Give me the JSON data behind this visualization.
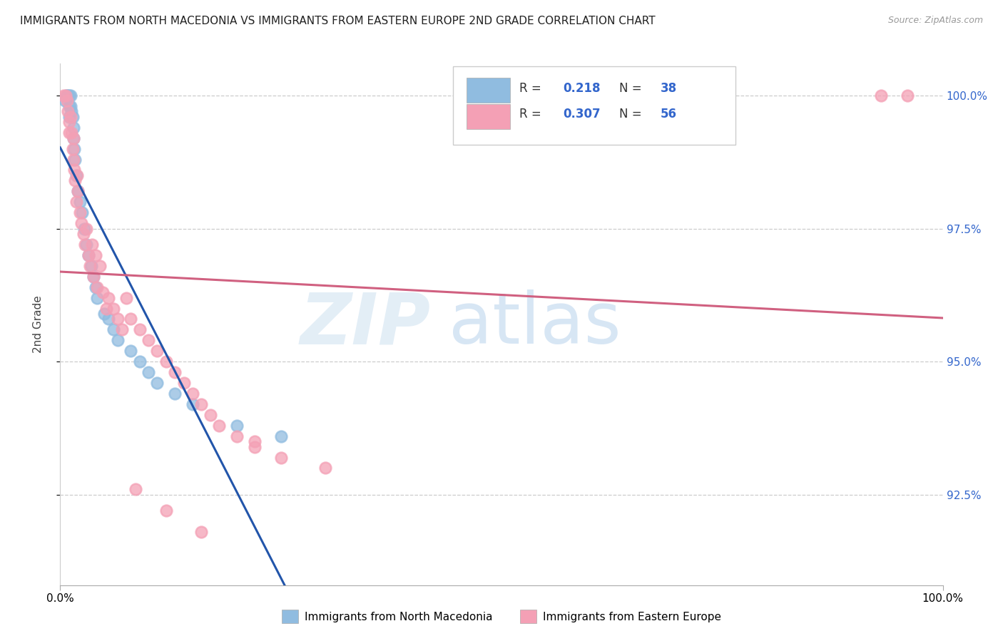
{
  "title": "IMMIGRANTS FROM NORTH MACEDONIA VS IMMIGRANTS FROM EASTERN EUROPE 2ND GRADE CORRELATION CHART",
  "source": "Source: ZipAtlas.com",
  "ylabel": "2nd Grade",
  "y_tick_values": [
    0.925,
    0.95,
    0.975,
    1.0
  ],
  "y_tick_labels": [
    "92.5%",
    "95.0%",
    "97.5%",
    "100.0%"
  ],
  "x_lim": [
    0.0,
    1.0
  ],
  "y_lim": [
    0.908,
    1.006
  ],
  "blue_color": "#90BCE0",
  "pink_color": "#F4A0B5",
  "blue_line_color": "#2255AA",
  "pink_line_color": "#D06080",
  "legend_label1": "Immigrants from North Macedonia",
  "legend_label2": "Immigrants from Eastern Europe",
  "r_blue": "0.218",
  "n_blue": "38",
  "r_pink": "0.307",
  "n_pink": "56",
  "blue_x": [
    0.005,
    0.007,
    0.008,
    0.009,
    0.01,
    0.01,
    0.01,
    0.012,
    0.012,
    0.013,
    0.014,
    0.015,
    0.015,
    0.016,
    0.017,
    0.018,
    0.02,
    0.022,
    0.025,
    0.027,
    0.03,
    0.032,
    0.035,
    0.038,
    0.04,
    0.042,
    0.05,
    0.055,
    0.06,
    0.065,
    0.08,
    0.09,
    0.1,
    0.11,
    0.13,
    0.15,
    0.2,
    0.25
  ],
  "blue_y": [
    0.999,
    1.0,
    1.0,
    1.0,
    1.0,
    0.998,
    0.996,
    1.0,
    0.998,
    0.997,
    0.996,
    0.994,
    0.992,
    0.99,
    0.988,
    0.985,
    0.982,
    0.98,
    0.978,
    0.975,
    0.972,
    0.97,
    0.968,
    0.966,
    0.964,
    0.962,
    0.959,
    0.958,
    0.956,
    0.954,
    0.952,
    0.95,
    0.948,
    0.946,
    0.944,
    0.942,
    0.938,
    0.936
  ],
  "pink_x": [
    0.004,
    0.006,
    0.008,
    0.009,
    0.01,
    0.01,
    0.012,
    0.013,
    0.014,
    0.015,
    0.015,
    0.016,
    0.017,
    0.018,
    0.019,
    0.02,
    0.022,
    0.024,
    0.026,
    0.028,
    0.03,
    0.032,
    0.034,
    0.036,
    0.038,
    0.04,
    0.042,
    0.045,
    0.048,
    0.052,
    0.055,
    0.06,
    0.065,
    0.07,
    0.075,
    0.08,
    0.09,
    0.1,
    0.11,
    0.12,
    0.13,
    0.14,
    0.15,
    0.16,
    0.17,
    0.18,
    0.2,
    0.22,
    0.25,
    0.3,
    0.085,
    0.12,
    0.16,
    0.22,
    0.93,
    0.96
  ],
  "pink_y": [
    1.0,
    1.0,
    0.999,
    0.997,
    0.995,
    0.993,
    0.996,
    0.993,
    0.99,
    0.992,
    0.988,
    0.986,
    0.984,
    0.98,
    0.985,
    0.982,
    0.978,
    0.976,
    0.974,
    0.972,
    0.975,
    0.97,
    0.968,
    0.972,
    0.966,
    0.97,
    0.964,
    0.968,
    0.963,
    0.96,
    0.962,
    0.96,
    0.958,
    0.956,
    0.962,
    0.958,
    0.956,
    0.954,
    0.952,
    0.95,
    0.948,
    0.946,
    0.944,
    0.942,
    0.94,
    0.938,
    0.936,
    0.934,
    0.932,
    0.93,
    0.926,
    0.922,
    0.918,
    0.935,
    1.0,
    1.0
  ]
}
